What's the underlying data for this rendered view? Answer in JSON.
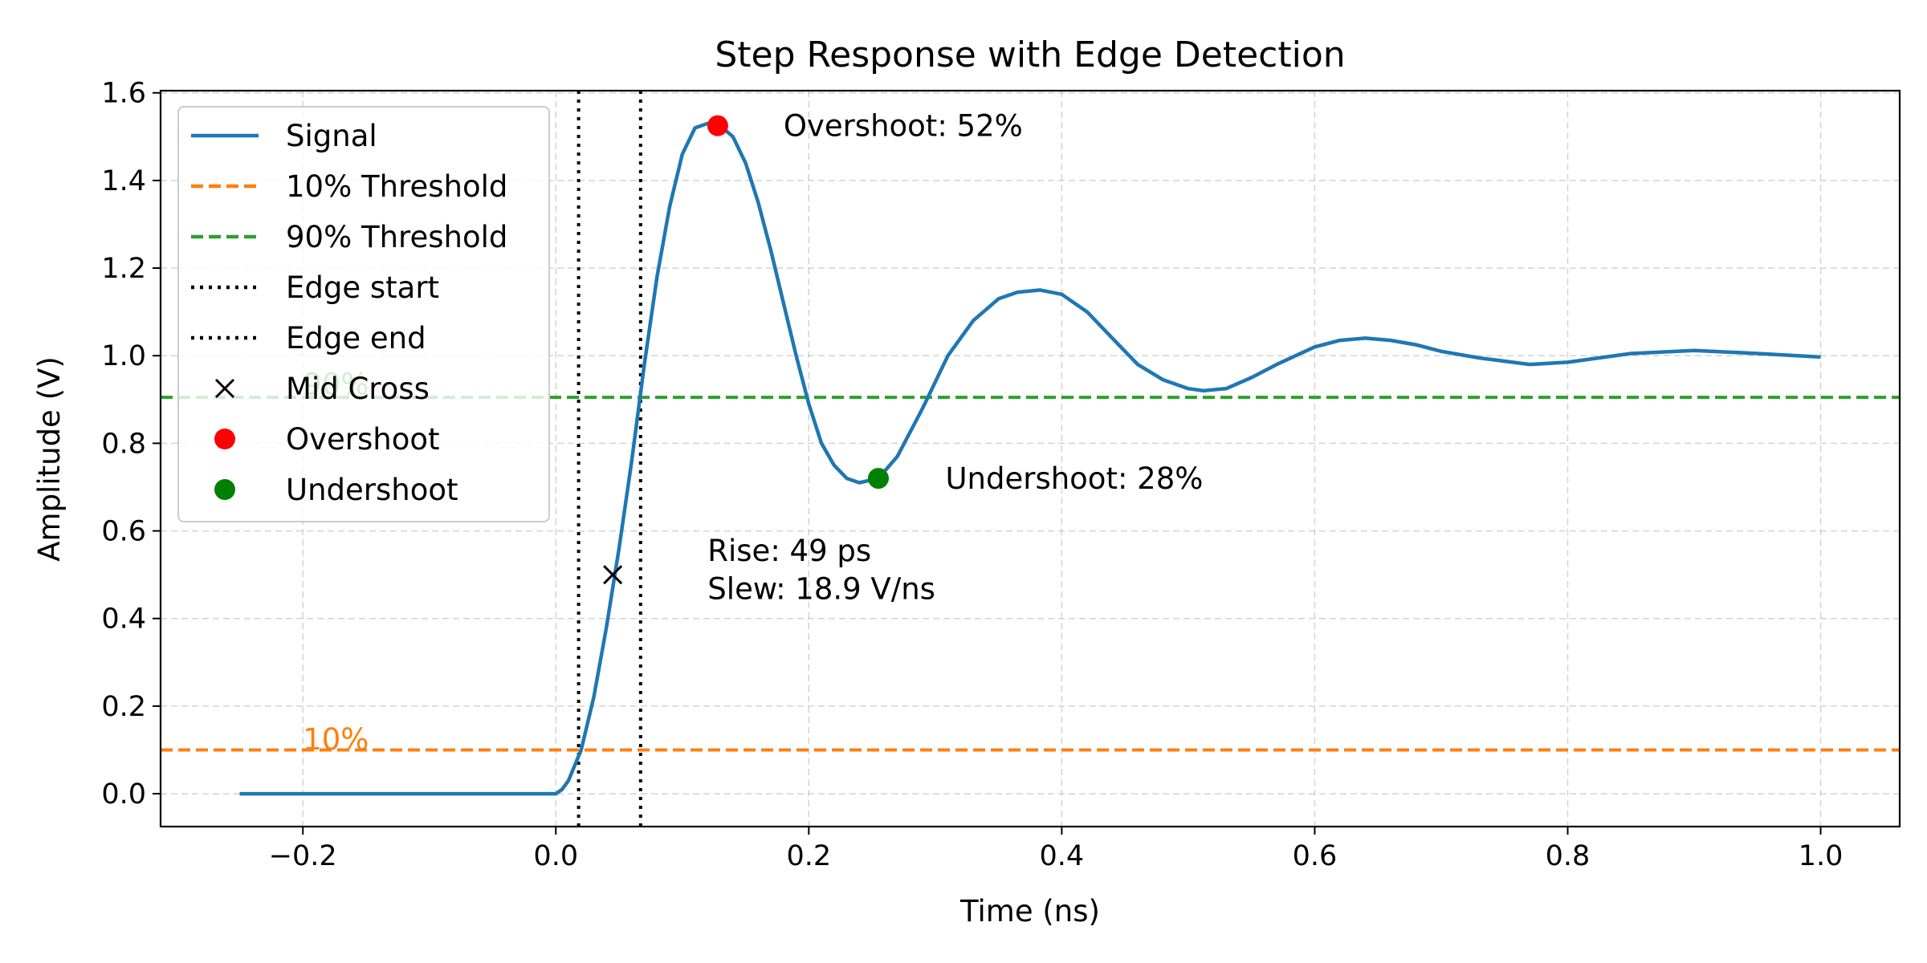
{
  "chart_data": {
    "type": "line",
    "title": "Step Response with Edge Detection",
    "xlabel": "Time (ns)",
    "ylabel": "Amplitude (V)",
    "xlim": [
      -0.3125,
      1.0625
    ],
    "ylim": [
      -0.075,
      1.605
    ],
    "xticks": [
      -0.2,
      0.0,
      0.2,
      0.4,
      0.6,
      0.8,
      1.0
    ],
    "xtick_labels": [
      "−0.2",
      "0.0",
      "0.2",
      "0.4",
      "0.6",
      "0.8",
      "1.0"
    ],
    "yticks": [
      0.0,
      0.2,
      0.4,
      0.6,
      0.8,
      1.0,
      1.2,
      1.4,
      1.6
    ],
    "ytick_labels": [
      "0.0",
      "0.2",
      "0.4",
      "0.6",
      "0.8",
      "1.0",
      "1.2",
      "1.4",
      "1.6"
    ],
    "grid": true,
    "legend_position": "upper-left",
    "series": [
      {
        "name": "Signal",
        "color": "#1f77b4",
        "style": "solid",
        "x": [
          -0.25,
          0.0,
          0.005,
          0.01,
          0.02,
          0.03,
          0.04,
          0.05,
          0.06,
          0.07,
          0.08,
          0.09,
          0.1,
          0.11,
          0.12,
          0.128,
          0.14,
          0.15,
          0.16,
          0.17,
          0.18,
          0.19,
          0.2,
          0.21,
          0.22,
          0.23,
          0.24,
          0.255,
          0.27,
          0.29,
          0.31,
          0.33,
          0.35,
          0.365,
          0.383,
          0.4,
          0.42,
          0.44,
          0.46,
          0.48,
          0.5,
          0.512,
          0.53,
          0.55,
          0.57,
          0.6,
          0.62,
          0.64,
          0.66,
          0.68,
          0.7,
          0.73,
          0.77,
          0.8,
          0.85,
          0.9,
          0.95,
          1.0
        ],
        "y": [
          0.0,
          0.0,
          0.01,
          0.03,
          0.1,
          0.22,
          0.38,
          0.56,
          0.76,
          0.98,
          1.18,
          1.34,
          1.46,
          1.52,
          1.53,
          1.53,
          1.5,
          1.44,
          1.35,
          1.24,
          1.12,
          1.0,
          0.89,
          0.8,
          0.75,
          0.72,
          0.71,
          0.72,
          0.77,
          0.88,
          1.0,
          1.08,
          1.13,
          1.145,
          1.15,
          1.14,
          1.1,
          1.04,
          0.98,
          0.945,
          0.925,
          0.92,
          0.925,
          0.95,
          0.98,
          1.02,
          1.035,
          1.04,
          1.035,
          1.025,
          1.01,
          0.995,
          0.98,
          0.985,
          1.005,
          1.012,
          1.005,
          0.997
        ]
      },
      {
        "name": "10% Threshold",
        "color": "#ff7f0e",
        "style": "dashed",
        "y": 0.1
      },
      {
        "name": "90% Threshold",
        "color": "#2ca02c",
        "style": "dashed",
        "y": 0.905
      },
      {
        "name": "Edge start",
        "color": "#000000",
        "style": "dotted",
        "x": 0.018
      },
      {
        "name": "Edge end",
        "color": "#000000",
        "style": "dotted",
        "x": 0.067
      },
      {
        "name": "Mid Cross",
        "color": "#000000",
        "marker": "x",
        "x": 0.045,
        "y": 0.5
      },
      {
        "name": "Overshoot",
        "color": "#ff0000",
        "marker": "o",
        "x": 0.128,
        "y": 1.525
      },
      {
        "name": "Undershoot",
        "color": "#008000",
        "marker": "o",
        "x": 0.255,
        "y": 0.72
      }
    ],
    "annotations": [
      {
        "text": "Overshoot: 52%",
        "x": 0.18,
        "y": 1.525,
        "color": "#000000"
      },
      {
        "text": "Undershoot: 28%",
        "x": 0.308,
        "y": 0.72,
        "color": "#000000"
      },
      {
        "text": "Rise: 49 ps",
        "x": 0.12,
        "y": 0.555,
        "color": "#000000"
      },
      {
        "text": "Slew: 18.9 V/ns",
        "x": 0.12,
        "y": 0.468,
        "color": "#000000"
      },
      {
        "text": "10%",
        "x": -0.2,
        "y": 0.125,
        "color": "#ff7f0e"
      },
      {
        "text": "90%",
        "x": -0.2,
        "y": 0.935,
        "color": "#2ca02c"
      }
    ]
  }
}
